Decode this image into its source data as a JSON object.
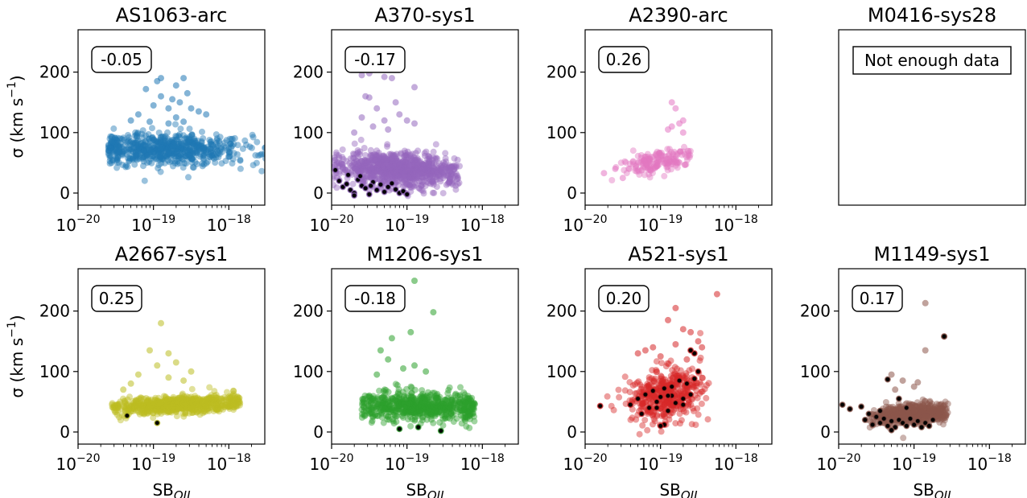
{
  "figure": {
    "ylabel": "σ (km s⁻¹)",
    "xlabel": "SB_OII"
  },
  "chart_data": [
    {
      "type": "scatter",
      "title": "AS1063-arc",
      "correlation": "-0.05",
      "note": "",
      "xscale": "log",
      "xlim": [
        1e-20,
        3e-18
      ],
      "ylim": [
        -20,
        270
      ],
      "xticks": [
        -20,
        -19,
        -18
      ],
      "yticks": [
        0,
        100,
        200
      ],
      "color": "#1f77b4",
      "flagged_color": "#000000",
      "series": [
        {
          "center_x": -18.8,
          "spread_x": 0.55,
          "x_min": -19.6,
          "x_max": -17.5,
          "base_y": 72,
          "slope_y": -2,
          "spread_y": 13,
          "n": 650,
          "outliers": [
            [
              -19.1,
              172
            ],
            [
              -18.95,
              185
            ],
            [
              -18.9,
              190
            ],
            [
              -18.7,
              178
            ],
            [
              -18.6,
              190
            ],
            [
              -18.55,
              165
            ],
            [
              -18.75,
              155
            ],
            [
              -18.9,
              160
            ],
            [
              -19.0,
              145
            ],
            [
              -18.65,
              150
            ],
            [
              -18.8,
              140
            ],
            [
              -19.2,
              130
            ],
            [
              -18.5,
              140
            ],
            [
              -18.4,
              135
            ],
            [
              -18.7,
              125
            ],
            [
              -19.3,
              120
            ],
            [
              -18.6,
              118
            ],
            [
              -18.3,
              130
            ],
            [
              -18.8,
              115
            ],
            [
              -19.05,
              118
            ]
          ]
        }
      ],
      "flagged": []
    },
    {
      "type": "scatter",
      "title": "A370-sys1",
      "correlation": "-0.17",
      "note": "",
      "xscale": "log",
      "xlim": [
        1e-20,
        3e-18
      ],
      "ylim": [
        -20,
        270
      ],
      "xticks": [
        -20,
        -19,
        -18
      ],
      "yticks": [
        0,
        100,
        200
      ],
      "color": "#9467bd",
      "flagged_color": "#000000",
      "series": [
        {
          "center_x": -19.1,
          "spread_x": 0.4,
          "x_min": -20.0,
          "x_max": -18.3,
          "base_y": 38,
          "slope_y": -6,
          "spread_y": 14,
          "n": 900,
          "outliers": [
            [
              -19.5,
              198
            ],
            [
              -19.6,
              195
            ],
            [
              -19.3,
              192
            ],
            [
              -19.2,
              190
            ],
            [
              -19.55,
              160
            ],
            [
              -19.5,
              158
            ],
            [
              -19.15,
              150
            ],
            [
              -19.4,
              140
            ],
            [
              -19.1,
              130
            ],
            [
              -19.3,
              120
            ],
            [
              -19.6,
              125
            ],
            [
              -19.0,
              120
            ],
            [
              -19.45,
              110
            ],
            [
              -18.9,
              115
            ],
            [
              -19.25,
              105
            ],
            [
              -19.7,
              100
            ],
            [
              -18.9,
              175
            ]
          ]
        }
      ],
      "flagged": [
        [
          -19.9,
          20
        ],
        [
          -19.85,
          10
        ],
        [
          -19.8,
          15
        ],
        [
          -19.75,
          5
        ],
        [
          -19.7,
          0
        ],
        [
          -19.65,
          22
        ],
        [
          -19.6,
          12
        ],
        [
          -19.55,
          8
        ],
        [
          -19.5,
          -2
        ],
        [
          -19.45,
          18
        ],
        [
          -19.4,
          5
        ],
        [
          -19.35,
          14
        ],
        [
          -19.3,
          2
        ],
        [
          -19.25,
          10
        ],
        [
          -19.2,
          16
        ],
        [
          -19.15,
          6
        ],
        [
          -19.1,
          0
        ],
        [
          -19.05,
          3
        ],
        [
          -19.0,
          -2
        ],
        [
          -19.78,
          30
        ],
        [
          -19.62,
          28
        ],
        [
          -19.48,
          12
        ],
        [
          -19.95,
          38
        ],
        [
          -19.7,
          -4
        ]
      ]
    },
    {
      "type": "scatter",
      "title": "A2390-arc",
      "correlation": "0.26",
      "note": "",
      "xscale": "log",
      "xlim": [
        1e-20,
        3e-18
      ],
      "ylim": [
        -20,
        270
      ],
      "xticks": [
        -20,
        -19,
        -18
      ],
      "yticks": [
        0,
        100,
        200
      ],
      "color": "#e377c2",
      "flagged_color": "#000000",
      "series": [
        {
          "center_x": -19.05,
          "spread_x": 0.25,
          "x_min": -19.8,
          "x_max": -18.6,
          "base_y": 52,
          "slope_y": 22,
          "spread_y": 10,
          "n": 170,
          "outliers": [
            [
              -18.85,
              150
            ],
            [
              -18.8,
              140
            ],
            [
              -18.7,
              120
            ],
            [
              -18.75,
              115
            ],
            [
              -18.85,
              110
            ],
            [
              -18.9,
              105
            ],
            [
              -18.7,
              100
            ],
            [
              -19.75,
              33
            ],
            [
              -19.6,
              40
            ],
            [
              -19.5,
              25
            ]
          ]
        }
      ],
      "flagged": []
    },
    {
      "type": "scatter",
      "title": "M0416-sys28",
      "correlation": "",
      "note": "Not enough data",
      "xscale": "log",
      "xlim": [
        1e-20,
        3e-18
      ],
      "ylim": [
        -20,
        270
      ],
      "xticks": [],
      "yticks": [],
      "color": "#7f7f7f",
      "flagged_color": "#000000",
      "series": [],
      "flagged": []
    },
    {
      "type": "scatter",
      "title": "A2667-sys1",
      "correlation": "0.25",
      "note": "",
      "xscale": "log",
      "xlim": [
        1e-20,
        3e-18
      ],
      "ylim": [
        -20,
        270
      ],
      "xticks": [
        -20,
        -19,
        -18
      ],
      "yticks": [
        0,
        100,
        200
      ],
      "color": "#bcbd22",
      "flagged_color": "#000000",
      "series": [
        {
          "center_x": -18.65,
          "spread_x": 0.45,
          "x_min": -19.55,
          "x_max": -17.85,
          "base_y": 45,
          "slope_y": 5,
          "spread_y": 7,
          "n": 750,
          "outliers": [
            [
              -18.9,
              180
            ],
            [
              -19.05,
              135
            ],
            [
              -18.8,
              130
            ],
            [
              -18.7,
              115
            ],
            [
              -18.95,
              110
            ],
            [
              -18.5,
              100
            ],
            [
              -19.2,
              95
            ],
            [
              -18.8,
              90
            ],
            [
              -19.3,
              80
            ],
            [
              -18.6,
              85
            ],
            [
              -19.4,
              70
            ]
          ]
        }
      ],
      "flagged": [
        [
          -19.35,
          27
        ],
        [
          -18.95,
          15
        ]
      ]
    },
    {
      "type": "scatter",
      "title": "M1206-sys1",
      "correlation": "-0.18",
      "note": "",
      "xscale": "log",
      "xlim": [
        1e-20,
        3e-18
      ],
      "ylim": [
        -20,
        270
      ],
      "xticks": [
        -20,
        -19,
        -18
      ],
      "yticks": [
        0,
        100,
        200
      ],
      "color": "#2ca02c",
      "flagged_color": "#000000",
      "series": [
        {
          "center_x": -18.8,
          "spread_x": 0.45,
          "x_min": -19.6,
          "x_max": -18.1,
          "base_y": 42,
          "slope_y": -3,
          "spread_y": 12,
          "n": 650,
          "outliers": [
            [
              -18.9,
              250
            ],
            [
              -18.65,
              198
            ],
            [
              -18.95,
              165
            ],
            [
              -19.2,
              155
            ],
            [
              -19.35,
              135
            ],
            [
              -19.25,
              120
            ],
            [
              -18.9,
              110
            ],
            [
              -19.05,
              105
            ],
            [
              -18.75,
              100
            ],
            [
              -19.4,
              95
            ]
          ]
        }
      ],
      "flagged": [
        [
          -19.1,
          5
        ],
        [
          -18.85,
          8
        ],
        [
          -18.55,
          2
        ]
      ]
    },
    {
      "type": "scatter",
      "title": "A521-sys1",
      "correlation": "0.20",
      "note": "",
      "xscale": "log",
      "xlim": [
        1e-20,
        3e-18
      ],
      "ylim": [
        -20,
        270
      ],
      "xticks": [
        -20,
        -19,
        -18
      ],
      "yticks": [
        0,
        100,
        200
      ],
      "color": "#d62728",
      "flagged_color": "#000000",
      "series": [
        {
          "center_x": -18.95,
          "spread_x": 0.25,
          "x_min": -19.8,
          "x_max": -18.3,
          "base_y": 62,
          "slope_y": 15,
          "spread_y": 22,
          "n": 420,
          "outliers": [
            [
              -18.25,
              228
            ],
            [
              -18.8,
              205
            ],
            [
              -18.9,
              185
            ],
            [
              -18.7,
              170
            ],
            [
              -18.6,
              165
            ],
            [
              -18.5,
              150
            ],
            [
              -18.8,
              145
            ],
            [
              -19.1,
              140
            ],
            [
              -19.2,
              135
            ],
            [
              -19.3,
              130
            ],
            [
              -18.45,
              140
            ],
            [
              -19.0,
              125
            ],
            [
              -18.65,
              120
            ]
          ]
        }
      ],
      "flagged": [
        [
          -19.4,
          45
        ],
        [
          -19.3,
          55
        ],
        [
          -19.2,
          62
        ],
        [
          -19.15,
          40
        ],
        [
          -19.1,
          68
        ],
        [
          -19.05,
          50
        ],
        [
          -19.0,
          58
        ],
        [
          -18.95,
          72
        ],
        [
          -18.9,
          35
        ],
        [
          -18.85,
          60
        ],
        [
          -18.8,
          48
        ],
        [
          -18.75,
          85
        ],
        [
          -18.7,
          55
        ],
        [
          -18.65,
          80
        ],
        [
          -18.6,
          62
        ],
        [
          -18.55,
          88
        ],
        [
          -18.5,
          100
        ],
        [
          -19.25,
          30
        ],
        [
          -18.95,
          12
        ],
        [
          -19.0,
          10
        ],
        [
          -18.9,
          60
        ],
        [
          -18.85,
          75
        ],
        [
          -19.8,
          43
        ],
        [
          -19.05,
          40
        ],
        [
          -18.7,
          45
        ],
        [
          -18.55,
          130
        ],
        [
          -18.6,
          135
        ]
      ]
    },
    {
      "type": "scatter",
      "title": "M1149-sys1",
      "correlation": "0.17",
      "note": "",
      "xscale": "log",
      "xlim": [
        1e-20,
        3e-18
      ],
      "ylim": [
        -20,
        270
      ],
      "xticks": [
        -20,
        -19,
        -18
      ],
      "yticks": [
        0,
        100,
        200
      ],
      "color": "#8c564b",
      "flagged_color": "#000000",
      "series": [
        {
          "center_x": -19.0,
          "spread_x": 0.25,
          "x_min": -19.8,
          "x_max": -18.55,
          "base_y": 30,
          "slope_y": 10,
          "spread_y": 8,
          "n": 600,
          "outliers": [
            [
              -18.85,
              213
            ],
            [
              -18.6,
              158
            ],
            [
              -18.85,
              135
            ],
            [
              -19.3,
              95
            ],
            [
              -19.15,
              85
            ],
            [
              -18.95,
              82
            ],
            [
              -19.0,
              75
            ],
            [
              -19.25,
              70
            ]
          ]
        }
      ],
      "flagged": [
        [
          -19.95,
          45
        ],
        [
          -19.85,
          38
        ],
        [
          -19.7,
          42
        ],
        [
          -19.65,
          20
        ],
        [
          -19.6,
          30
        ],
        [
          -19.55,
          12
        ],
        [
          -19.5,
          25
        ],
        [
          -19.45,
          15
        ],
        [
          -19.4,
          22
        ],
        [
          -19.35,
          10
        ],
        [
          -19.3,
          18
        ],
        [
          -19.25,
          8
        ],
        [
          -19.2,
          20
        ],
        [
          -19.15,
          15
        ],
        [
          -19.1,
          10
        ],
        [
          -19.05,
          22
        ],
        [
          -19.0,
          12
        ],
        [
          -18.95,
          18
        ],
        [
          -18.9,
          8
        ],
        [
          -18.85,
          15
        ],
        [
          -18.8,
          10
        ],
        [
          -19.35,
          87
        ],
        [
          -19.2,
          55
        ],
        [
          -18.6,
          158
        ],
        [
          -19.45,
          35
        ],
        [
          -19.1,
          40
        ],
        [
          -19.3,
          3
        ],
        [
          -18.75,
          20
        ]
      ]
    }
  ]
}
